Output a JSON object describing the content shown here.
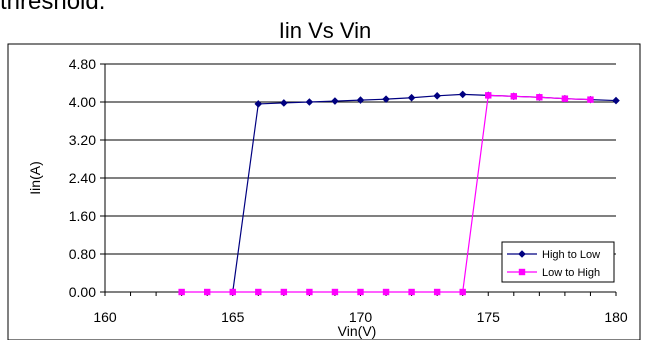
{
  "top_text": "threshold.",
  "chart_data": {
    "type": "line",
    "title": "Iin Vs Vin",
    "xlabel": "Vin(V)",
    "ylabel": "Iin(A)",
    "xlim": [
      160,
      180
    ],
    "ylim": [
      0,
      4.8
    ],
    "x_ticks": [
      "160",
      "165",
      "170",
      "175",
      "180"
    ],
    "y_ticks": [
      "0.00",
      "0.80",
      "1.60",
      "2.40",
      "3.20",
      "4.00",
      "4.80"
    ],
    "grid": "horizontal",
    "legend_position": "bottom-right",
    "series": [
      {
        "name": "High to Low",
        "color": "#000080",
        "marker": "diamond",
        "x": [
          165,
          166,
          167,
          168,
          169,
          170,
          171,
          172,
          173,
          174,
          175,
          176,
          177,
          178,
          179,
          180
        ],
        "y": [
          0.0,
          3.96,
          3.98,
          4.0,
          4.02,
          4.04,
          4.06,
          4.09,
          4.13,
          4.16,
          4.14,
          4.12,
          4.1,
          4.07,
          4.05,
          4.03
        ]
      },
      {
        "name": "Low to High",
        "color": "#FF00FF",
        "marker": "square",
        "x": [
          163,
          164,
          165,
          166,
          167,
          168,
          169,
          170,
          171,
          172,
          173,
          174,
          175,
          176,
          177,
          178,
          179
        ],
        "y": [
          0,
          0,
          0,
          0,
          0,
          0,
          0,
          0,
          0,
          0,
          0,
          0,
          4.14,
          4.12,
          4.1,
          4.07,
          4.05
        ]
      }
    ]
  }
}
